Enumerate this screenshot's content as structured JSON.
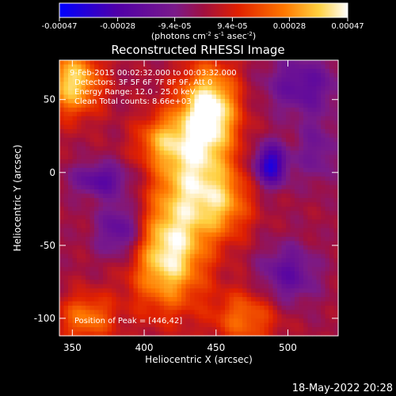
{
  "timestamp": "18-May-2022 20:28",
  "chart_data": {
    "type": "heatmap",
    "title": "Reconstructed RHESSI Image",
    "xlabel": "Heliocentric X (arcsec)",
    "ylabel": "Heliocentric Y (arcsec)",
    "xlim": [
      341,
      535
    ],
    "ylim": [
      -112,
      77
    ],
    "x_ticks": [
      350,
      400,
      450,
      500
    ],
    "y_ticks": [
      50,
      0,
      -50,
      -100
    ],
    "colorbar": {
      "ticks": [
        -0.00047,
        -0.00028,
        -9.4e-05,
        9.4e-05,
        0.00028,
        0.00047
      ],
      "tick_labels": [
        "-0.00047",
        "-0.00028",
        "-9.4e-05",
        "9.4e-05",
        "0.00028",
        "0.00047"
      ],
      "range": [
        -0.00047,
        0.00047
      ],
      "unit_label": "(photons cm<sup>-2</sup> s<sup>-1</sup> asec<sup>-2</sup>)",
      "unit_parts": [
        "(photons cm",
        "-2",
        " s",
        "-1",
        " asec",
        "-2",
        ")"
      ]
    },
    "annotations": [
      "9-Feb-2015 00:02:32.000 to 00:03:32.000",
      "Detectors: 3F 5F 6F 7F 8F 9F, Att 0",
      "Energy Range: 12.0 - 25.0 keV",
      "Clean     Total counts: 8.66e+03",
      "Position of Peak = [446,42]"
    ],
    "peak": [
      446,
      42
    ],
    "sources": [
      {
        "x": 446,
        "y": 42,
        "amplitude": 1.0,
        "sx": 14,
        "sy": 22
      },
      {
        "x": 416,
        "y": -58,
        "amplitude": 0.9,
        "sx": 18,
        "sy": 26
      },
      {
        "x": 350,
        "y": 62,
        "amplitude": 0.85,
        "sx": 14,
        "sy": 16
      },
      {
        "x": 430,
        "y": 0,
        "amplitude": 0.7,
        "sx": 16,
        "sy": 30
      },
      {
        "x": 455,
        "y": -20,
        "amplitude": 0.6,
        "sx": 14,
        "sy": 18
      },
      {
        "x": 360,
        "y": -100,
        "amplitude": 0.55,
        "sx": 14,
        "sy": 12
      },
      {
        "x": 410,
        "y": 22,
        "amplitude": 0.45,
        "sx": 12,
        "sy": 12
      },
      {
        "x": 470,
        "y": -100,
        "amplitude": 0.5,
        "sx": 16,
        "sy": 14
      },
      {
        "x": 488,
        "y": 5,
        "amplitude": -0.85,
        "sx": 8,
        "sy": 10
      },
      {
        "x": 385,
        "y": -40,
        "amplitude": -0.55,
        "sx": 12,
        "sy": 14
      },
      {
        "x": 370,
        "y": -5,
        "amplitude": -0.5,
        "sx": 14,
        "sy": 8
      },
      {
        "x": 510,
        "y": 60,
        "amplitude": -0.45,
        "sx": 18,
        "sy": 14
      },
      {
        "x": 500,
        "y": -70,
        "amplitude": -0.45,
        "sx": 14,
        "sy": 14
      },
      {
        "x": 520,
        "y": 15,
        "amplitude": -0.3,
        "sx": 10,
        "sy": 16
      }
    ]
  }
}
